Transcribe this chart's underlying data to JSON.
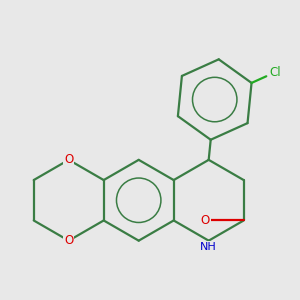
{
  "bg_color": "#e8e8e8",
  "bond_color": "#3a7d44",
  "bond_width": 1.6,
  "atom_colors": {
    "O": "#dd0000",
    "N": "#0000cc",
    "Cl": "#22aa22",
    "C": "#3a7d44"
  }
}
